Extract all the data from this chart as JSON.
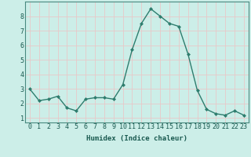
{
  "x": [
    0,
    1,
    2,
    3,
    4,
    5,
    6,
    7,
    8,
    9,
    10,
    11,
    12,
    13,
    14,
    15,
    16,
    17,
    18,
    19,
    20,
    21,
    22,
    23
  ],
  "y": [
    3.0,
    2.2,
    2.3,
    2.5,
    1.7,
    1.5,
    2.3,
    2.4,
    2.4,
    2.3,
    3.3,
    5.7,
    7.5,
    8.5,
    8.0,
    7.5,
    7.3,
    5.4,
    2.9,
    1.6,
    1.3,
    1.2,
    1.5,
    1.2
  ],
  "line_color": "#2e7d6e",
  "marker": "D",
  "marker_size": 2.0,
  "bg_color": "#cceee8",
  "grid_color": "#e8c8c8",
  "xlabel": "Humidex (Indice chaleur)",
  "xlim": [
    -0.5,
    23.5
  ],
  "ylim": [
    0.7,
    9.0
  ],
  "yticks": [
    1,
    2,
    3,
    4,
    5,
    6,
    7,
    8
  ],
  "xticks": [
    0,
    1,
    2,
    3,
    4,
    5,
    6,
    7,
    8,
    9,
    10,
    11,
    12,
    13,
    14,
    15,
    16,
    17,
    18,
    19,
    20,
    21,
    22,
    23
  ],
  "xlabel_fontsize": 6.5,
  "tick_fontsize": 6.0,
  "line_width": 1.0,
  "spine_color": "#4a8a80"
}
